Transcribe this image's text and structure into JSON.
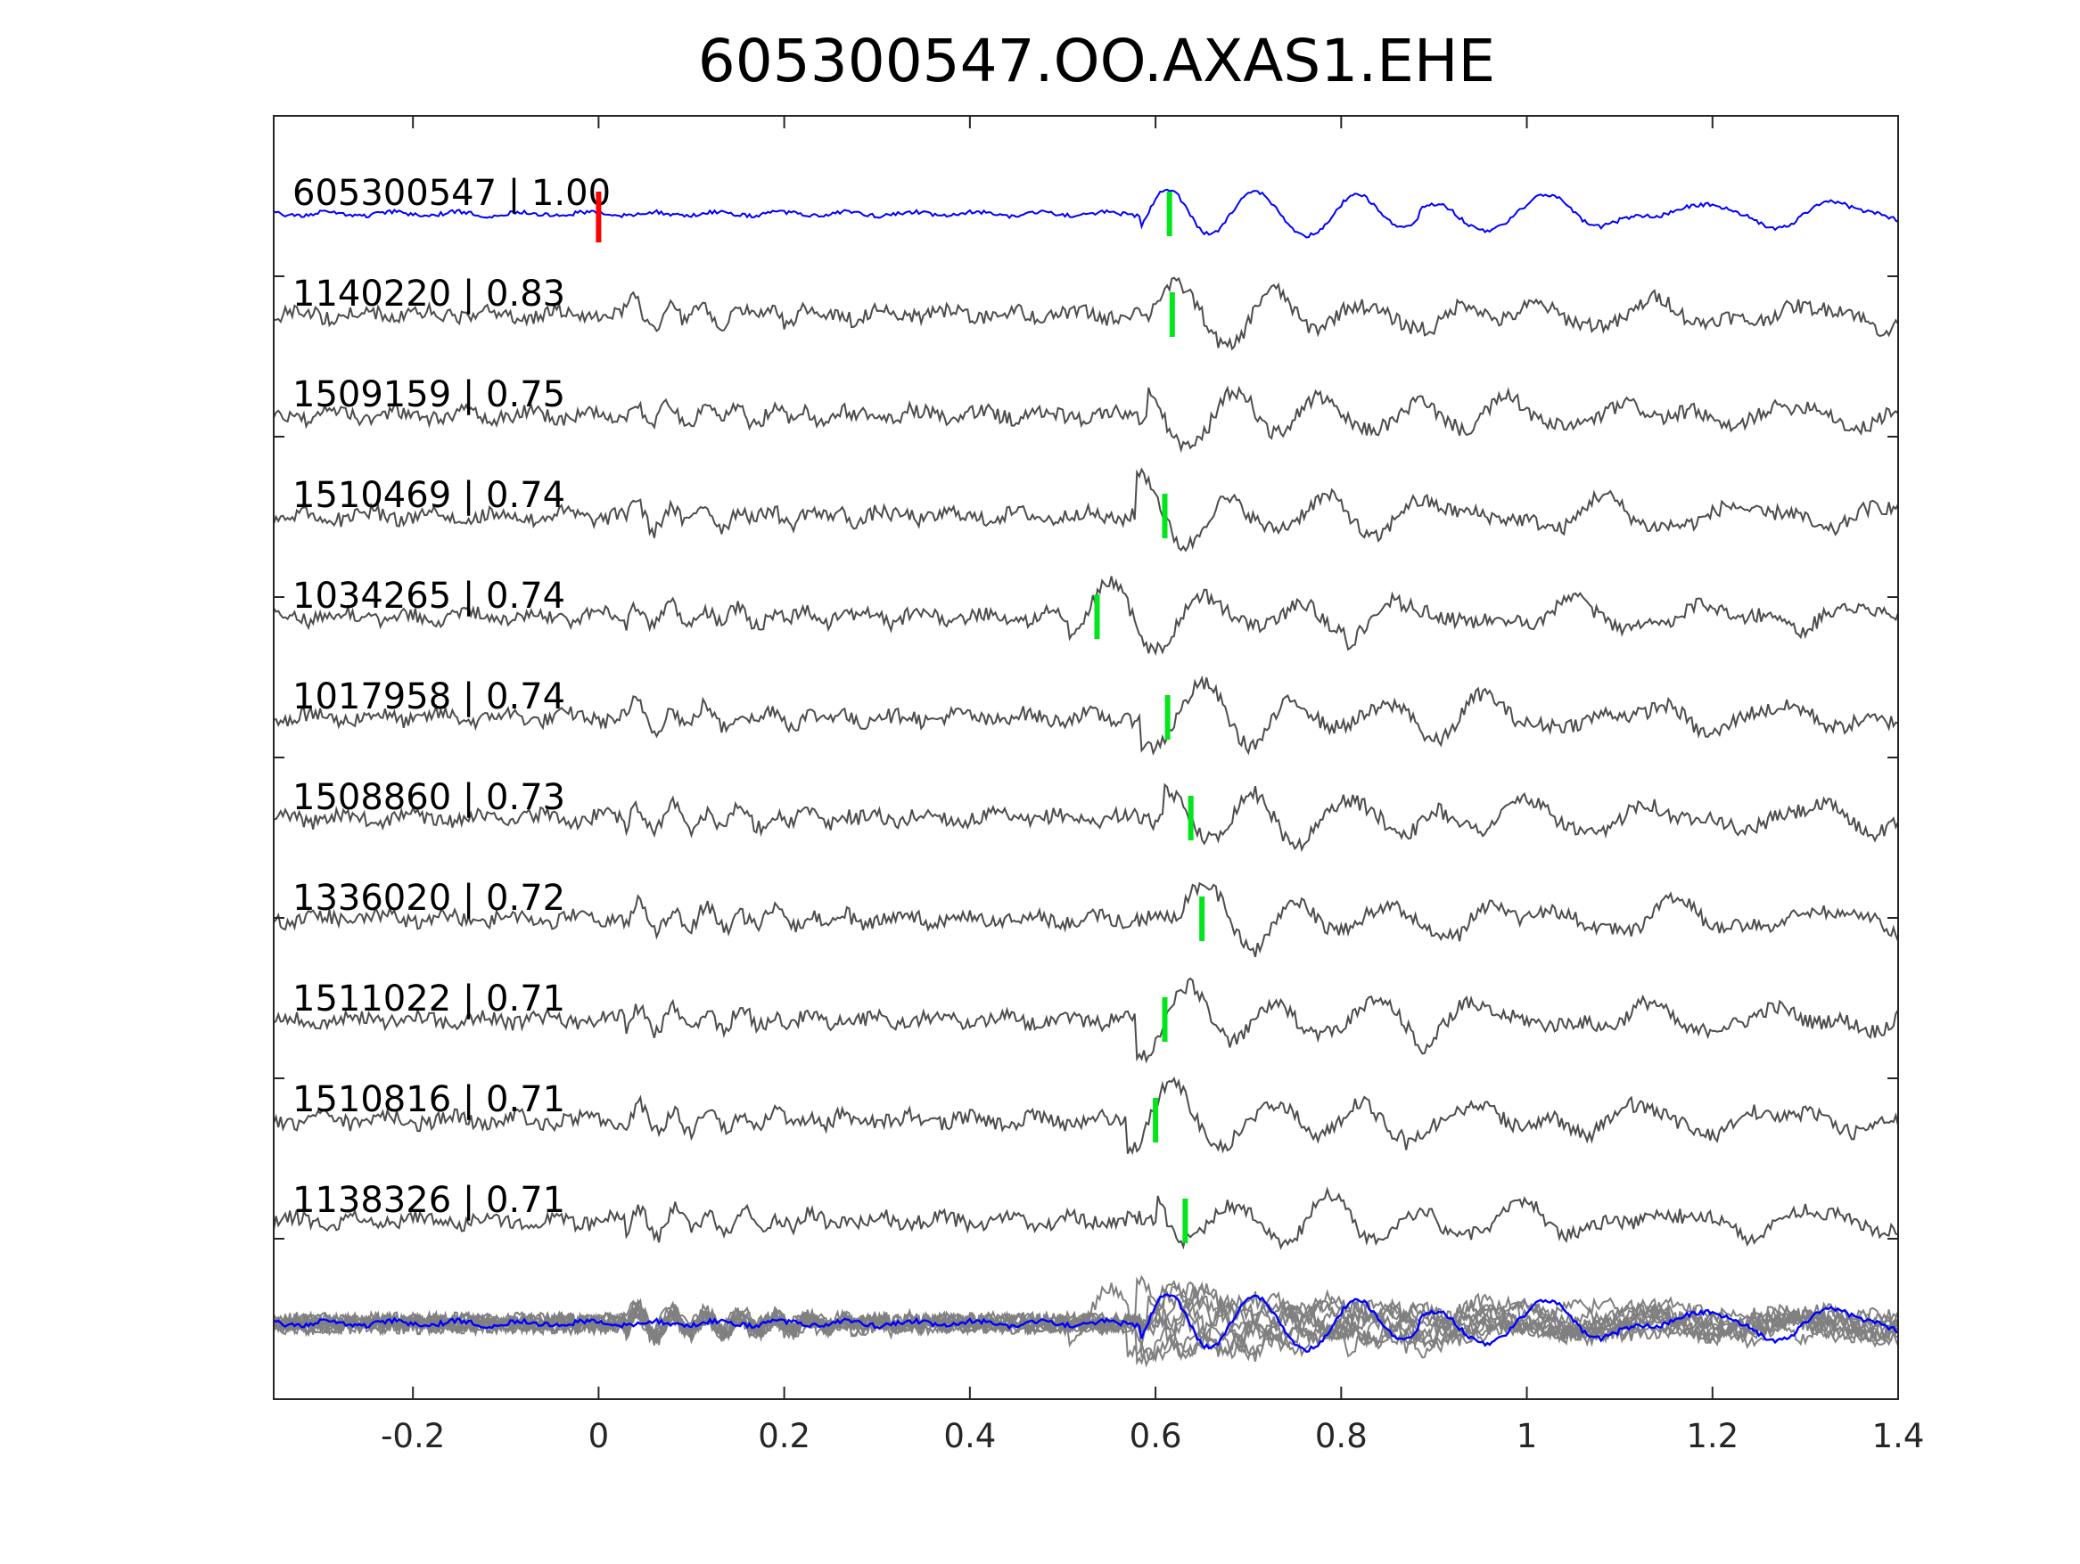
{
  "chart_data": {
    "type": "line",
    "title": "605300547.OO.AXAS1.EHE",
    "xlabel": "",
    "ylabel": "",
    "xlim": [
      -0.35,
      1.4
    ],
    "xticks": [
      "-0.2",
      "0",
      "0.2",
      "0.4",
      "0.6",
      "0.8",
      "1",
      "1.2",
      "1.4"
    ],
    "xtick_values": [
      -0.2,
      0,
      0.2,
      0.4,
      0.6,
      0.8,
      1,
      1.2,
      1.4
    ],
    "grid": false,
    "legend": "none",
    "colors": {
      "reference_trace": "#0000ff",
      "correlated_trace": "#4d4d4d",
      "stack_trace": "#808080",
      "reference_pick": "#ff0000",
      "phase_pick": "#00e61a",
      "axes": "#262626"
    },
    "series": [
      {
        "label": "605300547 | 1.00",
        "id": "605300547",
        "cc": 1.0,
        "pick_time": 0.615,
        "reference": true,
        "amplitude": 1.0,
        "seed": 1
      },
      {
        "label": "1140220 | 0.83",
        "id": "1140220",
        "cc": 0.83,
        "pick_time": 0.618,
        "reference": false,
        "amplitude": 1.0,
        "seed": 2
      },
      {
        "label": "1509159 | 0.75",
        "id": "1509159",
        "cc": 0.75,
        "pick_time": null,
        "reference": false,
        "amplitude": 1.0,
        "seed": 3
      },
      {
        "label": "1510469 | 0.74",
        "id": "1510469",
        "cc": 0.74,
        "pick_time": 0.61,
        "reference": false,
        "amplitude": 1.0,
        "seed": 4
      },
      {
        "label": "1034265 | 0.74",
        "id": "1034265",
        "cc": 0.74,
        "pick_time": 0.537,
        "reference": false,
        "amplitude": 1.0,
        "seed": 5
      },
      {
        "label": "1017958 | 0.74",
        "id": "1017958",
        "cc": 0.74,
        "pick_time": 0.613,
        "reference": false,
        "amplitude": 1.0,
        "seed": 6
      },
      {
        "label": "1508860 | 0.73",
        "id": "1508860",
        "cc": 0.73,
        "pick_time": 0.638,
        "reference": false,
        "amplitude": 1.0,
        "seed": 7
      },
      {
        "label": "1336020 | 0.72",
        "id": "1336020",
        "cc": 0.72,
        "pick_time": 0.65,
        "reference": false,
        "amplitude": 1.0,
        "seed": 8
      },
      {
        "label": "1511022 | 0.71",
        "id": "1511022",
        "cc": 0.71,
        "pick_time": 0.61,
        "reference": false,
        "amplitude": 1.0,
        "seed": 9
      },
      {
        "label": "1510816 | 0.71",
        "id": "1510816",
        "cc": 0.71,
        "pick_time": 0.6,
        "reference": false,
        "amplitude": 1.0,
        "seed": 10
      },
      {
        "label": "1138326 | 0.71",
        "id": "1138326",
        "cc": 0.71,
        "pick_time": 0.632,
        "reference": false,
        "amplitude": 1.0,
        "seed": 11
      }
    ],
    "reference_pick_time": 0.0,
    "stack": "overlay of all traces"
  }
}
